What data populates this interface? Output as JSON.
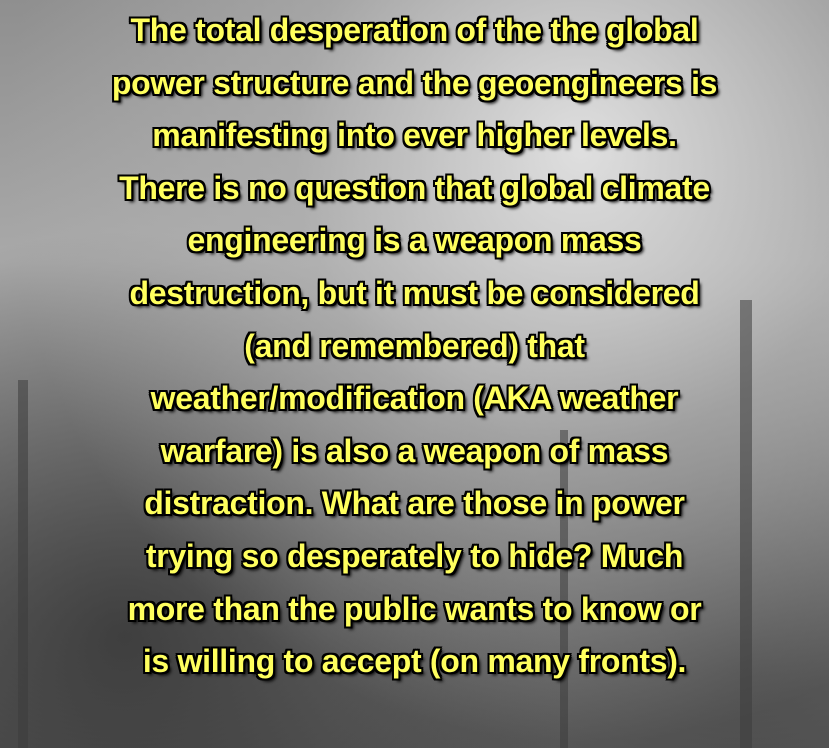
{
  "quote": {
    "lines": [
      "The total desperation of the the global",
      "power structure and the geoengineers is",
      "manifesting into ever higher levels.",
      "There is no question that global climate",
      "engineering is a weapon mass",
      "destruction, but it must be considered",
      "(and remembered) that",
      "weather/modification (AKA weather",
      "warfare) is also a weapon of mass",
      "distraction. What are those in power",
      "trying so desperately to hide? Much",
      "more than the public wants to know or",
      "is willing to accept (on many fronts)."
    ]
  }
}
